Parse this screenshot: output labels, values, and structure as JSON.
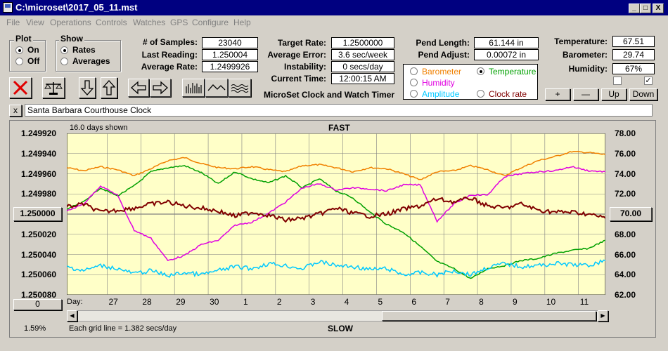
{
  "window": {
    "title": "C:\\microset\\2017_05_11.mst",
    "minimize": "_",
    "maximize": "□",
    "close": "X"
  },
  "menu": [
    "File",
    "View",
    "Operations",
    "Controls",
    "Watches",
    "GPS",
    "Configure",
    "Help"
  ],
  "plot_group": {
    "title": "Plot",
    "options": [
      "On",
      "Off"
    ],
    "selected": "On"
  },
  "show_group": {
    "title": "Show",
    "options": [
      "Rates",
      "Averages"
    ],
    "selected": "Rates"
  },
  "stats": {
    "samples_label": "# of Samples:",
    "samples": "23040",
    "last_reading_label": "Last Reading:",
    "last_reading": "1.250004",
    "average_rate_label": "Average Rate:",
    "average_rate": "1.2499926",
    "target_rate_label": "Target Rate:",
    "target_rate": "1.2500000",
    "average_error_label": "Average Error:",
    "average_error": "3.6 sec/week",
    "instability_label": "Instability:",
    "instability": "0 secs/day",
    "current_time_label": "Current Time:",
    "current_time": "12:00:15 AM",
    "pend_length_label": "Pend Length:",
    "pend_length": "61.144 in",
    "pend_adjust_label": "Pend Adjust:",
    "pend_adjust": "0.00072 in",
    "temperature_label": "Temperature:",
    "temperature": "67.51",
    "barometer_label": "Barometer:",
    "barometer": "29.74",
    "humidity_label": "Humidity:",
    "humidity": "67%"
  },
  "app_caption": "MicroSet Clock and Watch Timer",
  "sensor_group": {
    "options": [
      {
        "label": "Barometer",
        "color": "#f08000",
        "selected": false
      },
      {
        "label": "Temperature",
        "color": "#00a000",
        "selected": true
      },
      {
        "label": "Humidity",
        "color": "#e000e0",
        "selected": false
      },
      {
        "label": "Clock rate",
        "color": "#800000",
        "selected": false
      },
      {
        "label": "Amplitude",
        "color": "#00c8ff",
        "selected": false
      }
    ]
  },
  "right_checkboxes": [
    false,
    true
  ],
  "right_buttons": {
    "plus": "+",
    "minus": "—",
    "up": "Up",
    "down": "Down"
  },
  "toolbar_icons": [
    "stop-icon",
    "balance-icon",
    "arrow-down-icon",
    "arrow-up-icon",
    "arrow-left-icon",
    "arrow-right-icon",
    "bars-icon",
    "wave-icon",
    "squiggle-icon"
  ],
  "clock_name_close": "x",
  "clock_name": "Santa Barbara Courthouse Clock",
  "chart_header": {
    "days_shown": "16.0 days shown",
    "fast": "FAST",
    "slow": "SLOW"
  },
  "chart_footer": {
    "grid_note": "Each grid line = 1.382 secs/day",
    "percent": "1.59%",
    "left_button": "0",
    "day_label": "Day:",
    "center_button_left": "1.250000",
    "center_button_right": "70.00"
  },
  "chart_data": {
    "type": "line",
    "colors": {
      "background": "#ffffc8",
      "grid": "#808080",
      "barometer": "#f08000",
      "temperature": "#00a000",
      "humidity": "#e000e0",
      "clock_rate": "#800000",
      "amplitude": "#00c8ff"
    },
    "x_ticks": [
      "27",
      "28",
      "29",
      "30",
      "1",
      "2",
      "3",
      "4",
      "5",
      "6",
      "7",
      "8",
      "9",
      "10",
      "11"
    ],
    "x_range": [
      0,
      16
    ],
    "x_tick_positions": [
      1.2,
      2.2,
      3.2,
      4.2,
      5.2,
      6.2,
      7.2,
      8.2,
      9.2,
      10.2,
      11.2,
      12.2,
      13.2,
      14.2,
      15.2
    ],
    "y_left_ticks": [
      "1.249920",
      "1.249940",
      "1.249960",
      "1.249980",
      "1.250000",
      "1.250020",
      "1.250040",
      "1.250060",
      "1.250080"
    ],
    "y_left_range": [
      1.25008,
      1.24992
    ],
    "y_right_ticks": [
      "78.00",
      "76.00",
      "74.00",
      "72.00",
      "70.00",
      "68.00",
      "66.00",
      "64.00",
      "62.00"
    ],
    "y_right_range": [
      62,
      78
    ],
    "series": [
      {
        "name": "Barometer",
        "color": "#f08000",
        "axis": "right",
        "x": [
          0,
          0.5,
          1,
          1.5,
          2,
          2.5,
          3,
          3.5,
          4,
          4.5,
          5,
          5.5,
          6,
          6.5,
          7,
          7.5,
          8,
          8.5,
          9,
          9.5,
          10,
          10.5,
          11,
          11.5,
          12,
          12.5,
          13,
          13.5,
          14,
          14.5,
          15,
          15.5,
          16
        ],
        "y": [
          74.6,
          74.3,
          74.7,
          74.4,
          73.8,
          74.5,
          75.3,
          75.6,
          75.0,
          74.6,
          74.5,
          74.7,
          74.4,
          74.2,
          74.8,
          74.9,
          74.6,
          74.2,
          74.6,
          74.5,
          74.0,
          73.4,
          74.2,
          74.3,
          74.8,
          74.4,
          73.8,
          74.6,
          75.3,
          75.7,
          76.2,
          76.1,
          75.9
        ]
      },
      {
        "name": "Temperature",
        "color": "#00a000",
        "axis": "right",
        "x": [
          0,
          0.5,
          1,
          1.5,
          2,
          2.5,
          3,
          3.5,
          4,
          4.5,
          5,
          5.5,
          6,
          6.5,
          7,
          7.5,
          8,
          8.5,
          9,
          9.5,
          10,
          10.5,
          11,
          11.5,
          12,
          12.5,
          13,
          13.5,
          14,
          14.5,
          15,
          15.5,
          16
        ],
        "y": [
          70.5,
          71.2,
          72.6,
          71.8,
          72.8,
          74.2,
          74.6,
          74.8,
          74.1,
          73.0,
          74.2,
          73.5,
          73.1,
          73.8,
          72.6,
          73.5,
          72.3,
          71.6,
          70.2,
          69.0,
          68.2,
          66.8,
          65.3,
          64.6,
          63.6,
          64.6,
          64.9,
          65.4,
          65.6,
          66.1,
          66.4,
          66.6,
          67.4
        ]
      },
      {
        "name": "Humidity",
        "color": "#e000e0",
        "axis": "right",
        "x": [
          0,
          0.5,
          1,
          1.5,
          2,
          2.5,
          3,
          3.5,
          4,
          4.5,
          5,
          5.5,
          6,
          6.5,
          7,
          7.5,
          8,
          8.5,
          9,
          9.5,
          10,
          10.5,
          11,
          11.5,
          12,
          12.5,
          13,
          13.5,
          14,
          14.5,
          15,
          15.5,
          16
        ],
        "y": [
          70.3,
          71.0,
          72.8,
          71.9,
          68.4,
          67.6,
          65.4,
          65.9,
          67.0,
          67.4,
          68.9,
          69.2,
          70.1,
          71.2,
          72.6,
          73.0,
          72.4,
          72.6,
          72.5,
          72.3,
          72.9,
          72.9,
          69.3,
          71.0,
          71.9,
          71.9,
          73.7,
          74.0,
          74.2,
          74.3,
          74.7,
          74.3,
          74.2
        ]
      },
      {
        "name": "Clock rate",
        "color": "#800000",
        "axis": "left",
        "x": [
          0,
          0.5,
          1,
          1.5,
          2,
          2.5,
          3,
          3.5,
          4,
          4.5,
          5,
          5.5,
          6,
          6.5,
          7,
          7.5,
          8,
          8.5,
          9,
          9.5,
          10,
          10.5,
          11,
          11.5,
          12,
          12.5,
          13,
          13.5,
          14,
          14.5,
          15,
          15.5,
          16
        ],
        "y": [
          1.249993,
          1.24999,
          1.249998,
          1.249996,
          1.249994,
          1.24999,
          1.249988,
          1.249992,
          1.249994,
          1.249997,
          1.250002,
          1.249998,
          1.250001,
          1.250006,
          1.250004,
          1.25,
          1.249994,
          1.249999,
          1.250002,
          1.25,
          1.249995,
          1.249992,
          1.249985,
          1.249988,
          1.249984,
          1.249992,
          1.249994,
          1.24999,
          1.249996,
          1.249998,
          1.249998,
          1.25,
          1.250004
        ]
      },
      {
        "name": "Amplitude",
        "color": "#00c8ff",
        "axis": "right",
        "x": [
          0,
          0.5,
          1,
          1.5,
          2,
          2.5,
          3,
          3.5,
          4,
          4.5,
          5,
          5.5,
          6,
          6.5,
          7,
          7.5,
          8,
          8.5,
          9,
          9.5,
          10,
          10.5,
          11,
          11.5,
          12,
          12.5,
          13,
          13.5,
          14,
          14.5,
          15,
          15.5,
          16
        ],
        "y": [
          64.8,
          64.4,
          64.9,
          64.6,
          64.1,
          64.4,
          63.9,
          64.2,
          64.0,
          64.4,
          64.8,
          64.6,
          65.1,
          64.9,
          64.6,
          65.3,
          64.9,
          64.8,
          64.5,
          64.6,
          64.0,
          64.2,
          64.0,
          64.4,
          64.0,
          64.7,
          65.1,
          64.8,
          64.9,
          65.1,
          65.0,
          64.9,
          65.4
        ]
      }
    ]
  }
}
